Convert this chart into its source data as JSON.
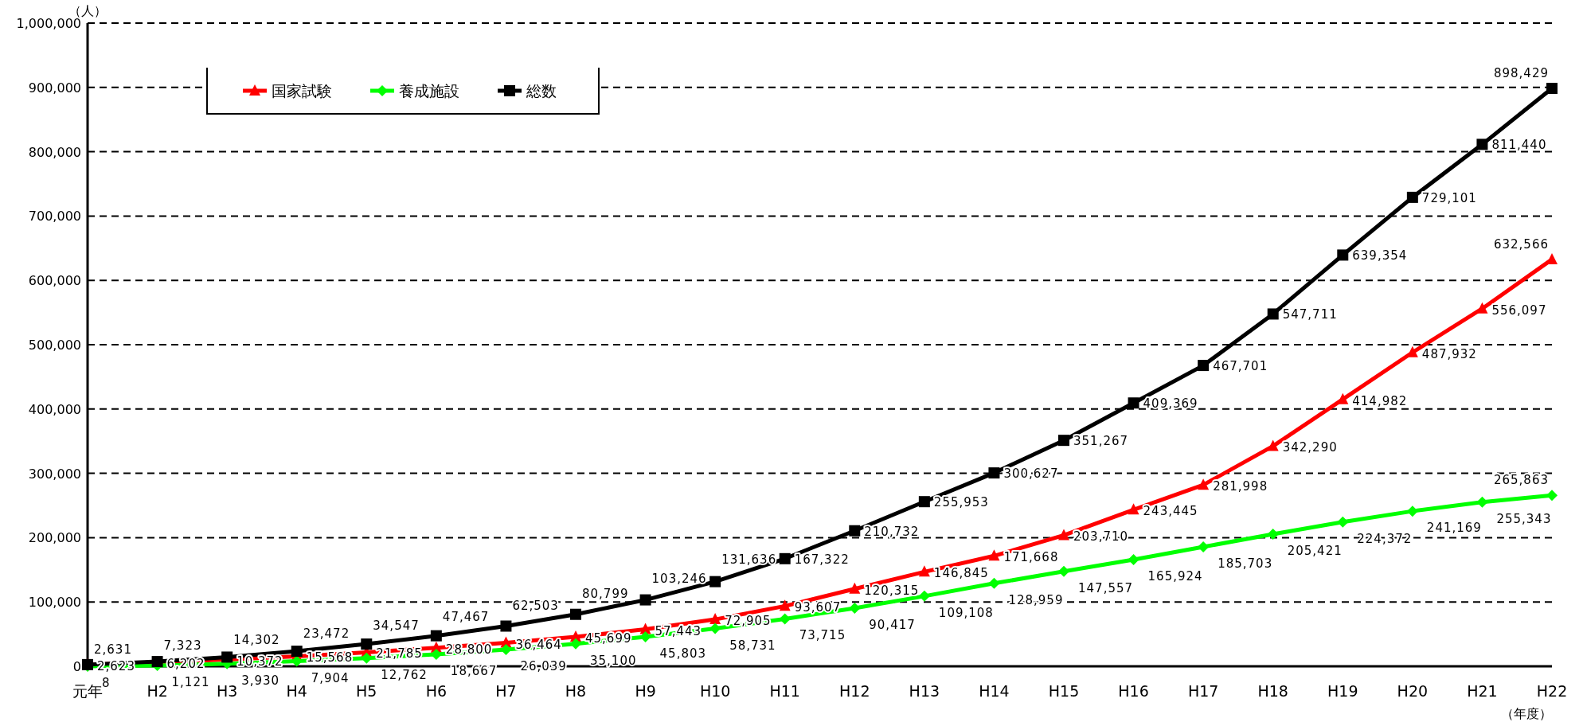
{
  "chart_data": {
    "type": "line",
    "ylabel": "（人）",
    "xlabel": "（年度）",
    "categories": [
      "元年",
      "H2",
      "H3",
      "H4",
      "H5",
      "H6",
      "H7",
      "H8",
      "H9",
      "H10",
      "H11",
      "H12",
      "H13",
      "H14",
      "H15",
      "H16",
      "H17",
      "H18",
      "H19",
      "H20",
      "H21",
      "H22"
    ],
    "series": [
      {
        "name": "国家試験",
        "color": "#ff0000",
        "marker": "triangle",
        "values": [
          2623,
          6202,
          10372,
          15568,
          21785,
          28800,
          36464,
          45699,
          57443,
          72905,
          93607,
          120315,
          146845,
          171668,
          203710,
          243445,
          281998,
          342290,
          414982,
          487932,
          556097,
          632566
        ],
        "value_labels": [
          "2,623",
          "6,202",
          "10,372",
          "15,568",
          "21,785",
          "28,800",
          "36,464",
          "45,699",
          "57,443",
          "72,905",
          "93,607",
          "120,315",
          "146,845",
          "171,668",
          "203,710",
          "243,445",
          "281,998",
          "342,290",
          "414,982",
          "487,932",
          "556,097",
          "632,566"
        ]
      },
      {
        "name": "養成施設",
        "color": "#00ff00",
        "marker": "diamond",
        "values": [
          8,
          1121,
          3930,
          7904,
          12762,
          18667,
          26039,
          35100,
          45803,
          58731,
          73715,
          90417,
          109108,
          128959,
          147557,
          165924,
          185703,
          205421,
          224372,
          241169,
          255343,
          265863
        ],
        "value_labels": [
          "8",
          "1,121",
          "3,930",
          "7,904",
          "12,762",
          "18,667",
          "26,039",
          "35,100",
          "45,803",
          "58,731",
          "73,715",
          "90,417",
          "109,108",
          "128,959",
          "147,557",
          "165,924",
          "185,703",
          "205,421",
          "224,372",
          "241,169",
          "255,343",
          "265,863"
        ]
      },
      {
        "name": "総数",
        "color": "#000000",
        "marker": "square",
        "values": [
          2631,
          7323,
          14302,
          23472,
          34547,
          47467,
          62503,
          80799,
          103246,
          131636,
          167322,
          210732,
          255953,
          300627,
          351267,
          409369,
          467701,
          547711,
          639354,
          729101,
          811440,
          898429
        ],
        "value_labels": [
          "2,631",
          "7,323",
          "14,302",
          "23,472",
          "34,547",
          "47,467",
          "62,503",
          "80,799",
          "103,246",
          "131,636",
          "167,322",
          "210,732",
          "255,953",
          "300,627",
          "351,267",
          "409,369",
          "467,701",
          "547,711",
          "639,354",
          "729,101",
          "811,440",
          "898,429"
        ]
      }
    ],
    "ylim": [
      0,
      1000000
    ],
    "yticks": [
      0,
      {
        "value": 100000,
        "label": "100,000"
      },
      {
        "value": 200000,
        "label": "200,000"
      },
      {
        "value": 300000,
        "label": "300,000"
      },
      {
        "value": 400000,
        "label": "400,000"
      },
      {
        "value": 500000,
        "label": "500,000"
      },
      {
        "value": 600000,
        "label": "600,000"
      },
      {
        "value": 700000,
        "label": "700,000"
      },
      {
        "value": 800000,
        "label": "800,000"
      },
      {
        "value": 900000,
        "label": "900,000"
      },
      {
        "value": 1000000,
        "label": "1,000,000"
      }
    ],
    "grid": "y",
    "line_style": "solid",
    "legend": "top left"
  }
}
